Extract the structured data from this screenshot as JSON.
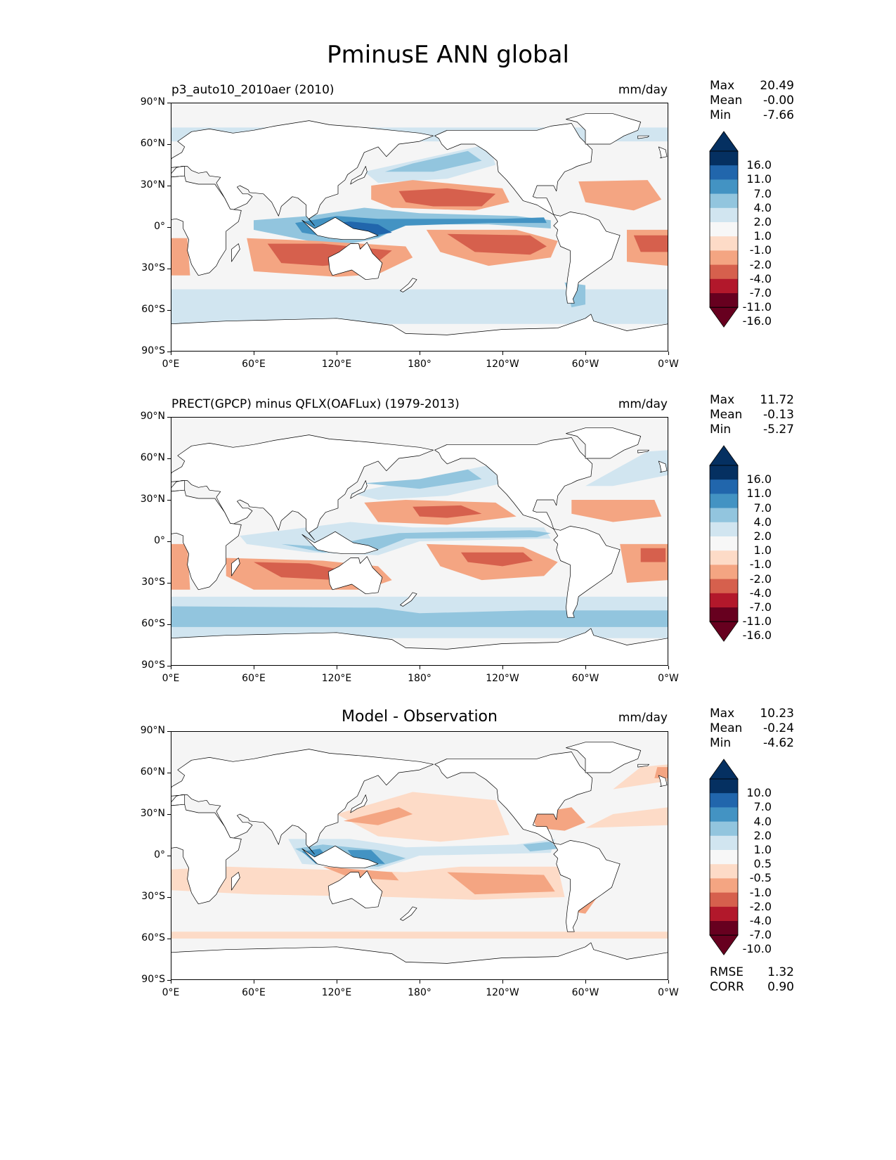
{
  "figure_title": "PminusE ANN global",
  "panels": [
    {
      "title": "p3_auto10_2010aer (2010)",
      "title_style": "left",
      "units": "mm/day",
      "stats": [
        {
          "label": "Max",
          "value": "20.49"
        },
        {
          "label": "Mean",
          "value": "-0.00"
        },
        {
          "label": "Min",
          "value": "-7.66"
        }
      ],
      "colorbar_levels": [
        "16.0",
        "11.0",
        "7.0",
        "4.0",
        "2.0",
        "1.0",
        "-1.0",
        "-2.0",
        "-4.0",
        "-7.0",
        "-11.0",
        "-16.0"
      ]
    },
    {
      "title": "PRECT(GPCP) minus QFLX(OAFLux) (1979-2013)",
      "title_style": "left",
      "units": "mm/day",
      "stats": [
        {
          "label": "Max",
          "value": "11.72"
        },
        {
          "label": "Mean",
          "value": "-0.13"
        },
        {
          "label": "Min",
          "value": "-5.27"
        }
      ],
      "colorbar_levels": [
        "16.0",
        "11.0",
        "7.0",
        "4.0",
        "2.0",
        "1.0",
        "-1.0",
        "-2.0",
        "-4.0",
        "-7.0",
        "-11.0",
        "-16.0"
      ]
    },
    {
      "title": "Model - Observation",
      "title_style": "center",
      "units": "mm/day",
      "stats": [
        {
          "label": "Max",
          "value": "10.23"
        },
        {
          "label": "Mean",
          "value": "-0.24"
        },
        {
          "label": "Min",
          "value": "-4.62"
        }
      ],
      "colorbar_levels": [
        "10.0",
        "7.0",
        "4.0",
        "2.0",
        "1.0",
        "0.5",
        "-0.5",
        "-1.0",
        "-2.0",
        "-4.0",
        "-7.0",
        "-10.0"
      ],
      "metrics": [
        {
          "label": "RMSE",
          "value": "1.32"
        },
        {
          "label": "CORR",
          "value": "0.90"
        }
      ]
    }
  ],
  "lat_ticks": [
    "90°N",
    "60°N",
    "30°N",
    "0°",
    "30°S",
    "60°S",
    "90°S"
  ],
  "lon_ticks": [
    "0°E",
    "60°E",
    "120°E",
    "180°",
    "120°W",
    "60°W",
    "0°W"
  ],
  "colormap": [
    "#053061",
    "#2166ac",
    "#4393c3",
    "#92c5de",
    "#d1e5f0",
    "#f7f7f7",
    "#fddbc7",
    "#f4a582",
    "#d6604d",
    "#b2182b",
    "#67001f"
  ],
  "palette": {
    "ocean_neutral": "#f5f5f5",
    "land": "#ffffff",
    "blue_light": "#d1e5f0",
    "blue_mid": "#92c5de",
    "blue_dark": "#4393c3",
    "blue_deep": "#2166ac",
    "red_light": "#fddbc7",
    "red_mid": "#f4a582",
    "red_dark": "#d6604d",
    "red_deep": "#b2182b"
  }
}
